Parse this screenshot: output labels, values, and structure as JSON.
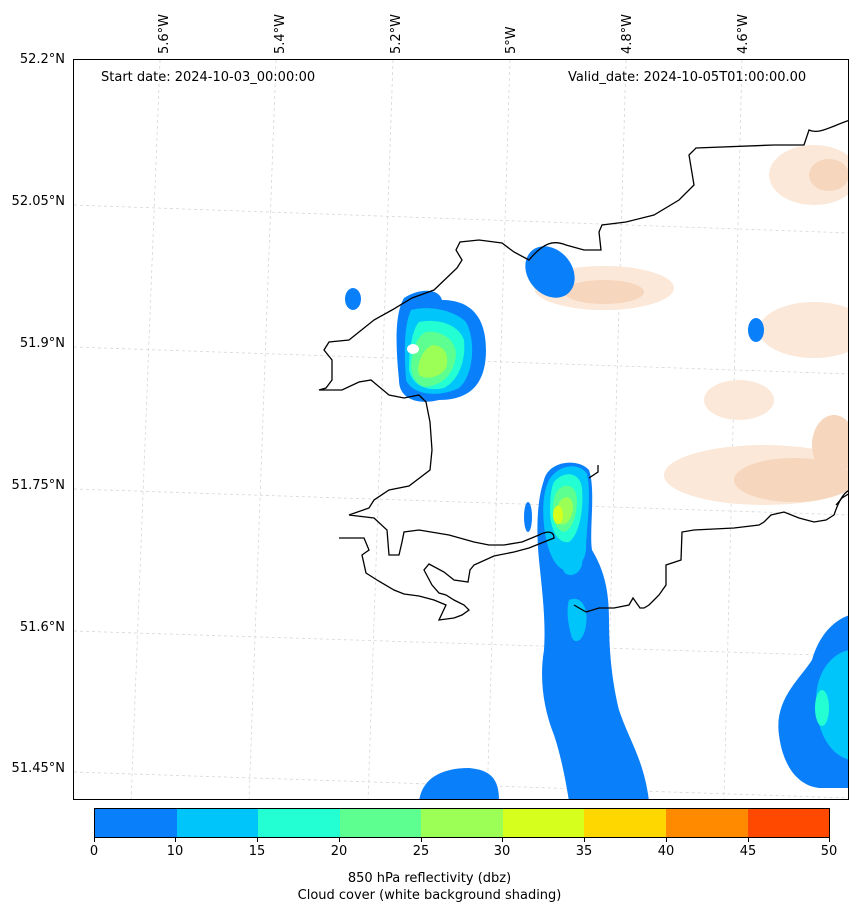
{
  "map": {
    "start_date": "Start date: 2024-10-03_00:00:00",
    "valid_date": "Valid_date: 2024-10-05T01:00:00.00",
    "longitude_labels": [
      "5.6°W",
      "5.4°W",
      "5.2°W",
      "5°W",
      "4.8°W",
      "4.6°W"
    ],
    "latitude_labels": [
      "52.2°N",
      "52.05°N",
      "51.9°N",
      "51.75°N",
      "51.6°N",
      "51.45°N"
    ],
    "coastline_color": "#000000",
    "gridline_style": "dashed-light-gray",
    "cloud_color": "#f7d9c0"
  },
  "colorbar": {
    "ticks": [
      "0",
      "10",
      "15",
      "20",
      "25",
      "30",
      "35",
      "40",
      "45",
      "50"
    ],
    "colors": [
      "#0a7ffa",
      "#00c5fb",
      "#23ffd3",
      "#5dff91",
      "#9cff55",
      "#d7ff1d",
      "#ffd700",
      "#ff8a00",
      "#ff4800"
    ],
    "label": "850 hPa reflectivity (dbz)",
    "sublabel": "Cloud cover (white background shading)"
  }
}
